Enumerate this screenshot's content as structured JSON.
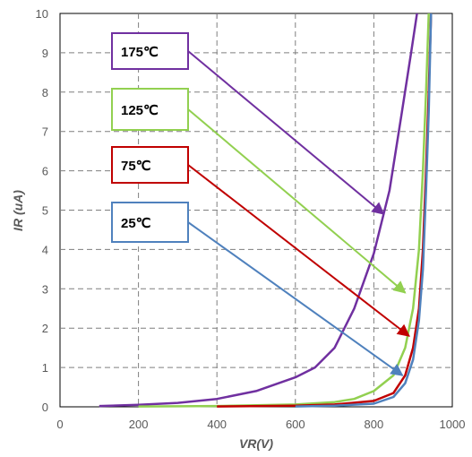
{
  "chart_data": {
    "type": "line",
    "xlabel": "VR(V)",
    "ylabel": "IR (uA)",
    "xlim": [
      0,
      1000
    ],
    "ylim": [
      0,
      10
    ],
    "x_ticks": [
      "0",
      "200",
      "400",
      "600",
      "800",
      "1000"
    ],
    "y_ticks": [
      "0",
      "1",
      "2",
      "3",
      "4",
      "5",
      "6",
      "7",
      "8",
      "9",
      "10"
    ],
    "grid": true,
    "series": [
      {
        "name": "175℃",
        "color": "#7030A0",
        "points": [
          [
            100,
            0.02
          ],
          [
            200,
            0.05
          ],
          [
            300,
            0.1
          ],
          [
            400,
            0.2
          ],
          [
            500,
            0.4
          ],
          [
            600,
            0.75
          ],
          [
            650,
            1.0
          ],
          [
            700,
            1.5
          ],
          [
            750,
            2.5
          ],
          [
            800,
            3.9
          ],
          [
            840,
            5.5
          ],
          [
            870,
            7.4
          ],
          [
            895,
            9.0
          ],
          [
            910,
            10.0
          ]
        ]
      },
      {
        "name": "125℃",
        "color": "#92D050",
        "points": [
          [
            200,
            0.01
          ],
          [
            400,
            0.02
          ],
          [
            600,
            0.06
          ],
          [
            700,
            0.12
          ],
          [
            750,
            0.2
          ],
          [
            800,
            0.4
          ],
          [
            850,
            0.8
          ],
          [
            880,
            1.5
          ],
          [
            900,
            2.5
          ],
          [
            915,
            4.0
          ],
          [
            925,
            6.0
          ],
          [
            933,
            8.0
          ],
          [
            940,
            10.0
          ]
        ]
      },
      {
        "name": "75℃",
        "color": "#C00000",
        "points": [
          [
            400,
            0.01
          ],
          [
            600,
            0.03
          ],
          [
            700,
            0.06
          ],
          [
            800,
            0.15
          ],
          [
            850,
            0.35
          ],
          [
            880,
            0.8
          ],
          [
            900,
            1.5
          ],
          [
            915,
            2.5
          ],
          [
            925,
            4.0
          ],
          [
            933,
            6.0
          ],
          [
            940,
            8.0
          ],
          [
            946,
            10.0
          ]
        ]
      },
      {
        "name": "25℃",
        "color": "#4F81BD",
        "points": [
          [
            600,
            0.01
          ],
          [
            700,
            0.03
          ],
          [
            800,
            0.08
          ],
          [
            850,
            0.25
          ],
          [
            880,
            0.6
          ],
          [
            900,
            1.2
          ],
          [
            915,
            2.2
          ],
          [
            925,
            3.5
          ],
          [
            933,
            5.5
          ],
          [
            940,
            7.5
          ],
          [
            946,
            10.0
          ]
        ]
      }
    ],
    "annotations": [
      {
        "text": "175℃",
        "color": "#7030A0",
        "arrow_to": [
          825,
          4.9
        ]
      },
      {
        "text": "125℃",
        "color": "#92D050",
        "arrow_to": [
          880,
          2.9
        ]
      },
      {
        "text": "75℃",
        "color": "#C00000",
        "arrow_to": [
          890,
          1.8
        ]
      },
      {
        "text": "25℃",
        "color": "#4F81BD",
        "arrow_to": [
          873,
          0.8
        ]
      }
    ]
  }
}
